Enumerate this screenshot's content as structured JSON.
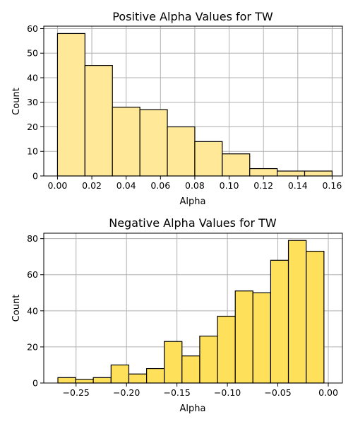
{
  "chart_data": [
    {
      "type": "bar",
      "subtype": "histogram",
      "title": "Positive Alpha Values for TW",
      "xlabel": "Alpha",
      "ylabel": "Count",
      "color": "#ffe999",
      "edge_color": "#000000",
      "grid": true,
      "xlim": [
        -0.008,
        0.166
      ],
      "ylim": [
        0,
        61
      ],
      "xticks": [
        0.0,
        0.02,
        0.04,
        0.06,
        0.08,
        0.1,
        0.12,
        0.14,
        0.16
      ],
      "xtick_labels": [
        "0.00",
        "0.02",
        "0.04",
        "0.06",
        "0.08",
        "0.10",
        "0.12",
        "0.14",
        "0.16"
      ],
      "yticks": [
        0,
        10,
        20,
        30,
        40,
        50,
        60
      ],
      "ytick_labels": [
        "0",
        "10",
        "20",
        "30",
        "40",
        "50",
        "60"
      ],
      "bins": [
        {
          "x0": 0.0,
          "x1": 0.016,
          "count": 58
        },
        {
          "x0": 0.016,
          "x1": 0.032,
          "count": 45
        },
        {
          "x0": 0.032,
          "x1": 0.048,
          "count": 28
        },
        {
          "x0": 0.048,
          "x1": 0.064,
          "count": 27
        },
        {
          "x0": 0.064,
          "x1": 0.08,
          "count": 20
        },
        {
          "x0": 0.08,
          "x1": 0.096,
          "count": 14
        },
        {
          "x0": 0.096,
          "x1": 0.112,
          "count": 9
        },
        {
          "x0": 0.112,
          "x1": 0.128,
          "count": 3
        },
        {
          "x0": 0.128,
          "x1": 0.144,
          "count": 2
        },
        {
          "x0": 0.144,
          "x1": 0.16,
          "count": 2
        }
      ]
    },
    {
      "type": "bar",
      "subtype": "histogram",
      "title": "Negative Alpha Values for TW",
      "xlabel": "Alpha",
      "ylabel": "Count",
      "color": "#ffe05a",
      "edge_color": "#000000",
      "grid": true,
      "xlim": [
        -0.282,
        0.014
      ],
      "ylim": [
        0,
        83
      ],
      "xticks": [
        -0.25,
        -0.2,
        -0.15,
        -0.1,
        -0.05,
        0.0
      ],
      "xtick_labels": [
        "−0.25",
        "−0.20",
        "−0.15",
        "−0.10",
        "−0.05",
        "0.00"
      ],
      "yticks": [
        0,
        20,
        40,
        60,
        80
      ],
      "ytick_labels": [
        "0",
        "20",
        "40",
        "60",
        "80"
      ],
      "bins": [
        {
          "x0": -0.268,
          "x1": -0.2504,
          "count": 3
        },
        {
          "x0": -0.2504,
          "x1": -0.2329,
          "count": 2
        },
        {
          "x0": -0.2329,
          "x1": -0.2153,
          "count": 3
        },
        {
          "x0": -0.2153,
          "x1": -0.1977,
          "count": 10
        },
        {
          "x0": -0.1977,
          "x1": -0.1801,
          "count": 5
        },
        {
          "x0": -0.1801,
          "x1": -0.1626,
          "count": 8
        },
        {
          "x0": -0.1626,
          "x1": -0.145,
          "count": 23
        },
        {
          "x0": -0.145,
          "x1": -0.1274,
          "count": 15
        },
        {
          "x0": -0.1274,
          "x1": -0.1098,
          "count": 26
        },
        {
          "x0": -0.1098,
          "x1": -0.0922,
          "count": 37
        },
        {
          "x0": -0.0922,
          "x1": -0.0747,
          "count": 51
        },
        {
          "x0": -0.0747,
          "x1": -0.0571,
          "count": 50
        },
        {
          "x0": -0.0571,
          "x1": -0.0395,
          "count": 68
        },
        {
          "x0": -0.0395,
          "x1": -0.0219,
          "count": 79
        },
        {
          "x0": -0.0219,
          "x1": -0.0043,
          "count": 73
        }
      ]
    }
  ]
}
